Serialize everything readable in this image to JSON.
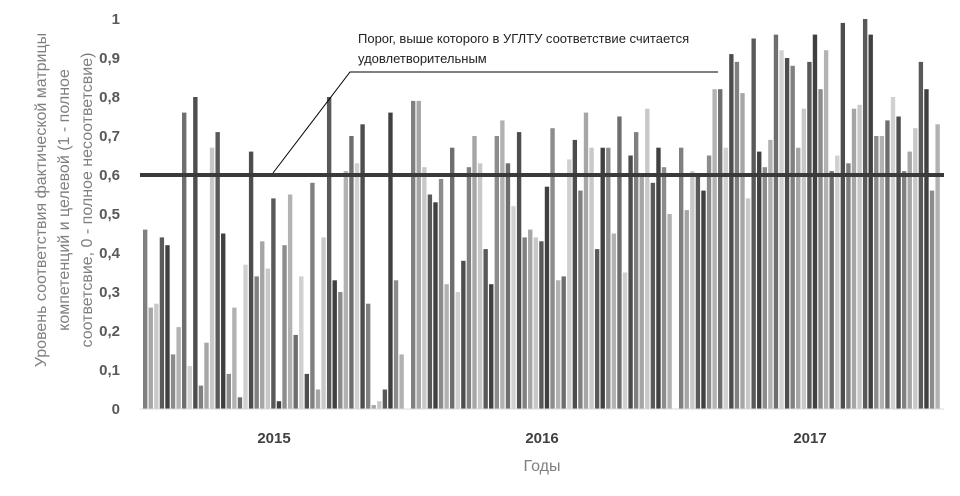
{
  "chart_data": {
    "type": "bar",
    "title": "",
    "xlabel": "Годы",
    "ylabel_lines": [
      "Уровень соответствия фактической матрицы",
      "компетенций и целевой (1 - полное",
      "соответсвие, 0 - полное несоответсвие)"
    ],
    "ylim": [
      0,
      1
    ],
    "yticks": [
      "0",
      "0,1",
      "0,2",
      "0,3",
      "0,4",
      "0,5",
      "0,6",
      "0,7",
      "0,8",
      "0,9",
      "1"
    ],
    "grid": false,
    "legend": "none",
    "threshold": {
      "value": 0.6,
      "label_lines": [
        "Порог, выше которого в УГЛТУ соответствие считается",
        "удовлетворительным"
      ]
    },
    "groups": [
      {
        "year": "2015",
        "values": [
          0.46,
          0.26,
          0.27,
          0.44,
          0.42,
          0.14,
          0.21,
          0.76,
          0.11,
          0.8,
          0.06,
          0.17,
          0.67,
          0.71,
          0.45,
          0.09,
          0.26,
          0.03,
          0.37,
          0.66,
          0.34,
          0.43,
          0.36,
          0.54,
          0.02,
          0.42,
          0.55,
          0.19,
          0.34,
          0.09,
          0.58,
          0.05,
          0.44,
          0.8,
          0.33,
          0.3,
          0.61,
          0.7,
          0.63,
          0.73,
          0.27,
          0.01,
          0.02,
          0.05,
          0.76,
          0.33,
          0.14
        ]
      },
      {
        "year": "2016",
        "values": [
          0.79,
          0.79,
          0.62,
          0.55,
          0.53,
          0.59,
          0.32,
          0.67,
          0.3,
          0.38,
          0.62,
          0.7,
          0.63,
          0.41,
          0.32,
          0.7,
          0.74,
          0.63,
          0.52,
          0.71,
          0.44,
          0.46,
          0.44,
          0.43,
          0.57,
          0.72,
          0.33,
          0.34,
          0.64,
          0.69,
          0.56,
          0.76,
          0.67,
          0.41,
          0.67,
          0.67,
          0.45,
          0.75,
          0.35,
          0.65,
          0.71,
          0.6,
          0.77,
          0.58,
          0.67,
          0.62,
          0.5
        ]
      },
      {
        "year": "2017",
        "values": [
          0.67,
          0.51,
          0.61,
          0.6,
          0.56,
          0.65,
          0.82,
          0.82,
          0.67,
          0.91,
          0.89,
          0.81,
          0.54,
          0.95,
          0.66,
          0.62,
          0.69,
          0.96,
          0.92,
          0.9,
          0.88,
          0.67,
          0.77,
          0.89,
          0.96,
          0.82,
          0.92,
          0.61,
          0.65,
          0.99,
          0.63,
          0.77,
          0.78,
          1.0,
          0.96,
          0.7,
          0.7,
          0.74,
          0.8,
          0.75,
          0.61,
          0.66,
          0.72,
          0.89,
          0.82,
          0.56,
          0.73
        ]
      }
    ]
  }
}
